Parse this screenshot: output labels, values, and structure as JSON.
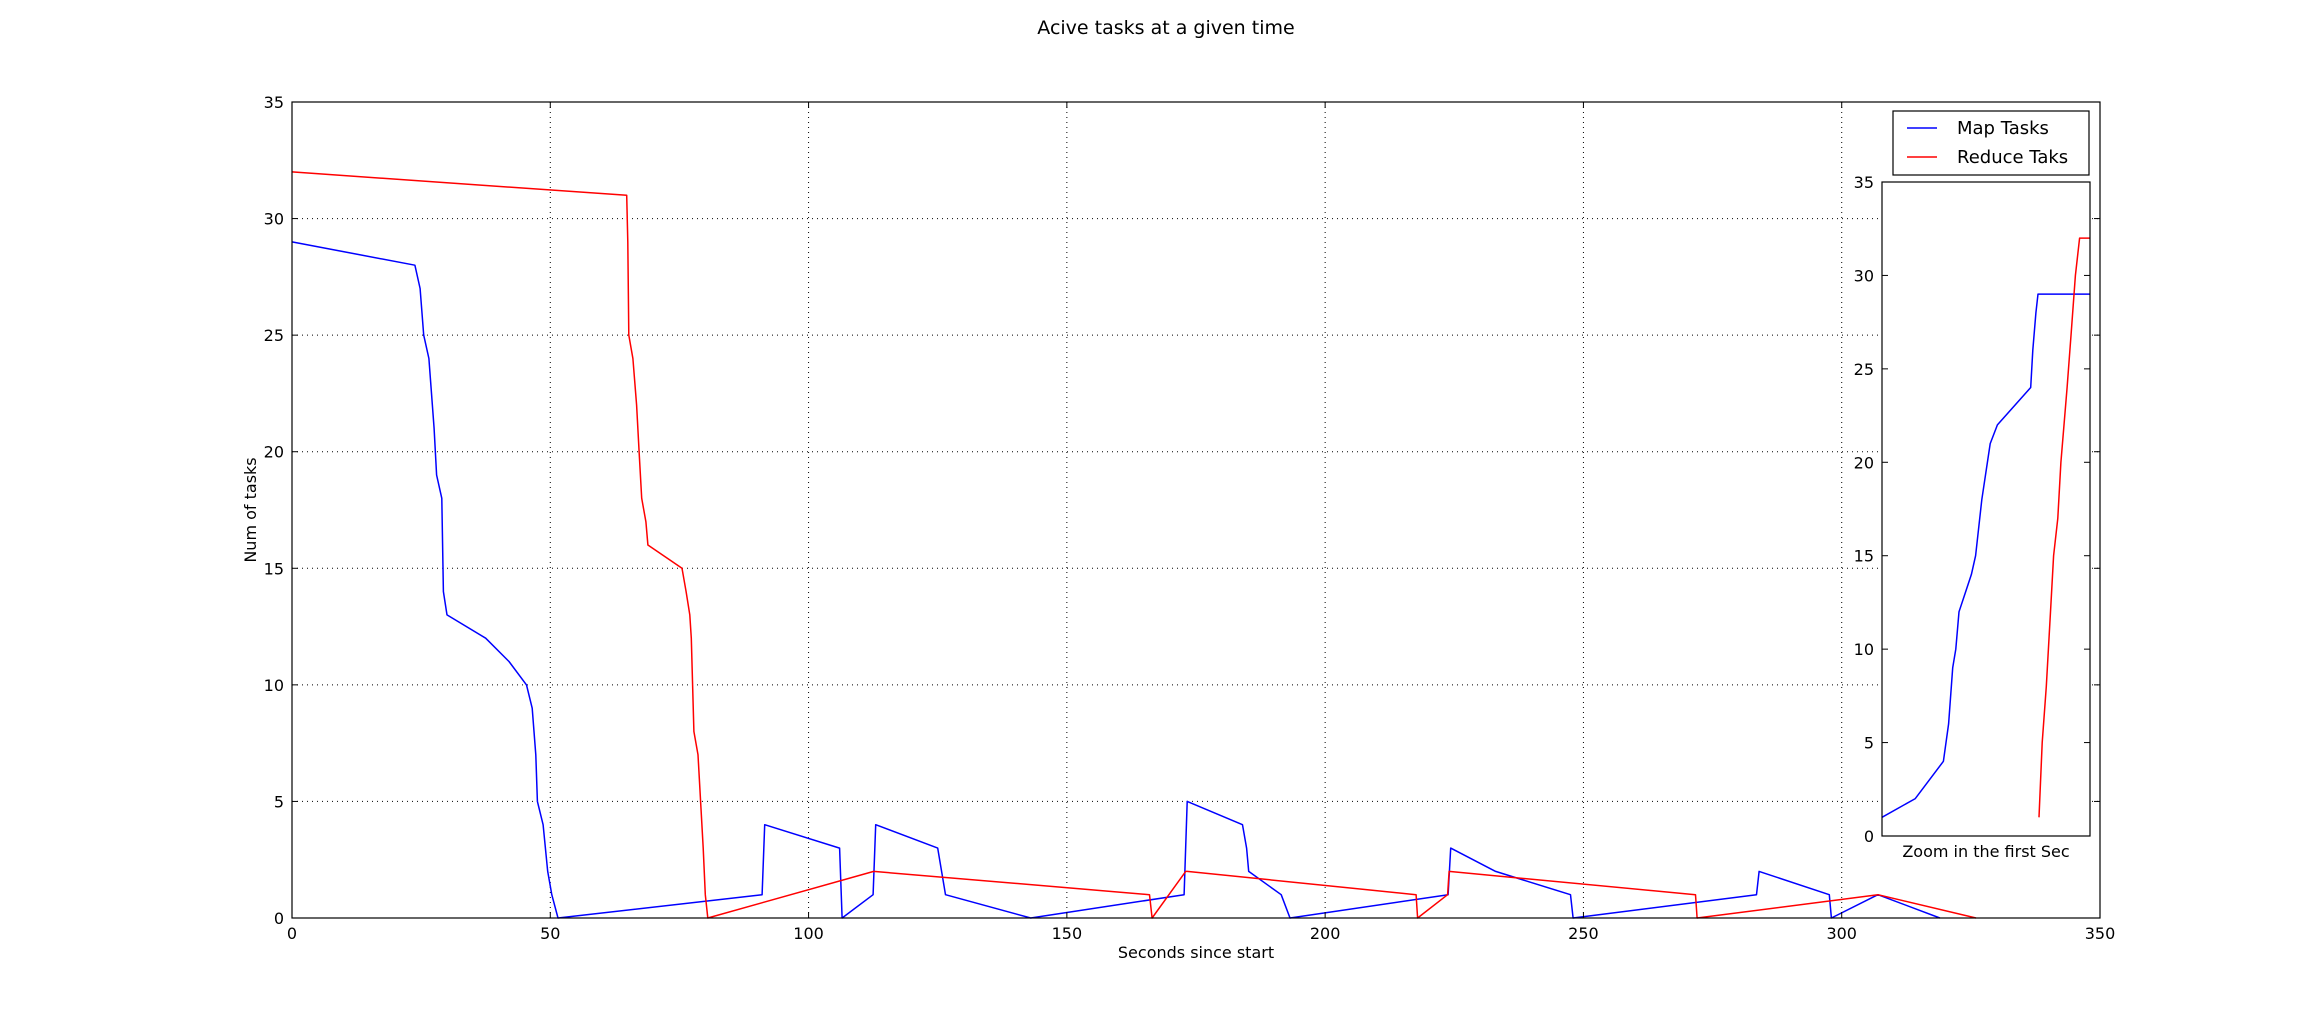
{
  "chart_data": [
    {
      "type": "line",
      "title": "Acive tasks at a given time",
      "xlabel": "Seconds since start",
      "ylabel": "Num of tasks",
      "xlim": [
        0,
        350
      ],
      "ylim": [
        0,
        35
      ],
      "xticks": [
        0,
        50,
        100,
        150,
        200,
        250,
        300,
        350
      ],
      "yticks": [
        0,
        5,
        10,
        15,
        20,
        25,
        30,
        35
      ],
      "grid": true,
      "legend_position": "top-right",
      "colors": {
        "Map Tasks": "#0000ff",
        "Reduce Taks": "#ff0000"
      },
      "series": [
        {
          "name": "Map Tasks",
          "x": [
            0,
            23.8,
            24.8,
            25.5,
            26.5,
            27.5,
            28.0,
            29.0,
            29.3,
            30.0,
            37.5,
            42.0,
            45.4,
            46.5,
            47.2,
            47.5,
            48.6,
            49.5,
            50.3,
            51.5,
            91.0,
            91.5,
            106.0,
            106.5,
            112.5,
            113.0,
            125.0,
            126.5,
            143.0,
            172.7,
            173.3,
            184.0,
            184.8,
            185.2,
            191.5,
            193.2,
            223.8,
            224.3,
            233.0,
            247.5,
            248.0,
            283.5,
            284.0,
            297.6,
            298.0,
            307.0,
            319.0
          ],
          "y": [
            29,
            28,
            27,
            25,
            24,
            21,
            19,
            18,
            14,
            13,
            12,
            11,
            10,
            9,
            7,
            5,
            4,
            2,
            1,
            0,
            1,
            4,
            3,
            0,
            1,
            4,
            3,
            1,
            0,
            1,
            5,
            4,
            3,
            2,
            1,
            0,
            1,
            3,
            2,
            1,
            0,
            1,
            2,
            1,
            0,
            1,
            0
          ]
        },
        {
          "name": "Reduce Taks",
          "x": [
            0,
            64.8,
            65.0,
            65.2,
            66.0,
            66.7,
            67.2,
            67.7,
            68.5,
            68.9,
            75.5,
            76.3,
            77.0,
            77.3,
            77.8,
            78.6,
            79.1,
            79.6,
            80.0,
            80.5,
            112.6,
            166.0,
            166.5,
            173.0,
            173.3,
            217.6,
            217.9,
            223.7,
            224.0,
            271.7,
            272.0,
            307.0,
            326.0
          ],
          "y": [
            32,
            31,
            29,
            25,
            24,
            22,
            20,
            18,
            17,
            16,
            15,
            14,
            13,
            12,
            8,
            7,
            5,
            3,
            1,
            0,
            2,
            1,
            0,
            2,
            2,
            1,
            0,
            1,
            2,
            1,
            0,
            1,
            0
          ]
        }
      ],
      "legend": [
        "Map Tasks",
        "Reduce Taks"
      ]
    },
    {
      "type": "line",
      "title": "",
      "xlabel": "Zoom in the first Sec",
      "ylabel": "",
      "xlim": [
        0,
        1
      ],
      "ylim": [
        0,
        35
      ],
      "xticks": [],
      "yticks": [
        0,
        5,
        10,
        15,
        20,
        25,
        30,
        35
      ],
      "grid": false,
      "colors": {
        "Map Tasks": "#0000ff",
        "Reduce Taks": "#ff0000"
      },
      "series": [
        {
          "name": "Map Tasks",
          "x": [
            0,
            0.16,
            0.295,
            0.32,
            0.34,
            0.355,
            0.37,
            0.4,
            0.43,
            0.45,
            0.48,
            0.52,
            0.555,
            0.715,
            0.725,
            0.74,
            0.75,
            1.0
          ],
          "y": [
            1,
            2,
            4,
            6,
            9,
            10,
            12,
            13,
            14,
            15,
            18,
            21,
            22,
            24,
            26,
            28,
            29,
            29
          ]
        },
        {
          "name": "Reduce Taks",
          "x": [
            0.755,
            0.77,
            0.79,
            0.81,
            0.825,
            0.845,
            0.86,
            0.875,
            0.89,
            0.91,
            0.93,
            0.95,
            0.98,
            1.0
          ],
          "y": [
            1,
            5,
            8,
            12,
            15,
            17,
            20,
            22,
            24,
            27,
            30,
            32,
            32,
            32
          ]
        }
      ]
    }
  ]
}
